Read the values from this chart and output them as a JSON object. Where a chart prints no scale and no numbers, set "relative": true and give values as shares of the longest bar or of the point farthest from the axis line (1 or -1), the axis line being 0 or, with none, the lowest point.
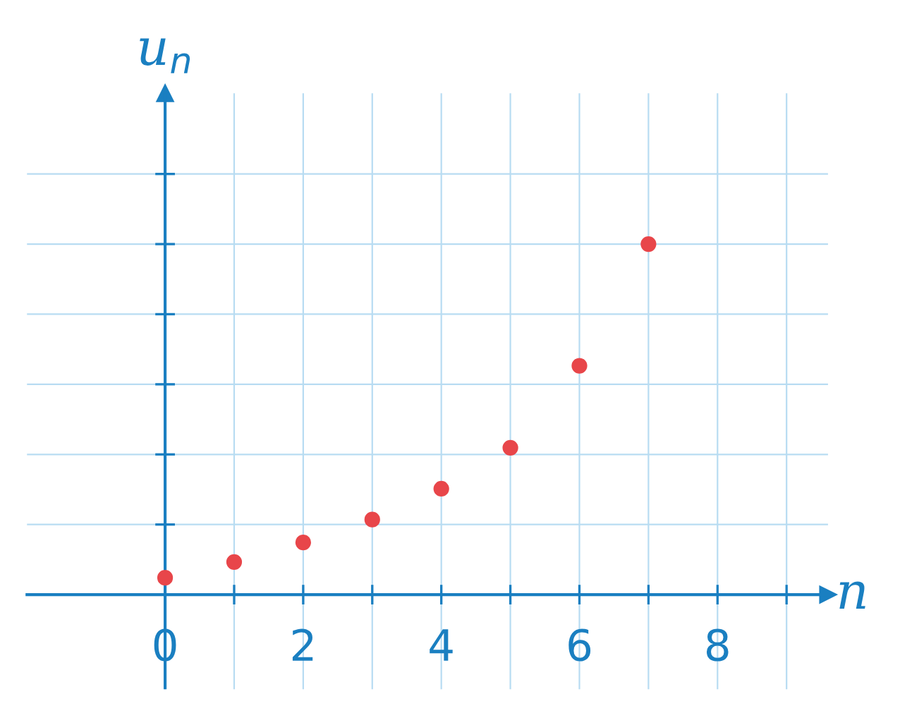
{
  "chart_data": {
    "type": "scatter",
    "relative": true,
    "xlabel": "n",
    "ylabel": "u$_{n}$",
    "x": [
      0,
      1,
      2,
      3,
      4,
      5,
      6,
      7
    ],
    "series": [
      {
        "color": "#e8464a",
        "values": [
          0.048,
          0.093,
          0.149,
          0.214,
          0.302,
          0.419,
          0.653,
          1
        ]
      }
    ],
    "xlim": [
      -2,
      9.6
    ],
    "xticks": [
      0,
      {
        "value": 1,
        "label": null
      },
      2,
      {
        "value": 3,
        "label": null
      },
      4,
      {
        "value": 5,
        "label": null
      },
      6,
      {
        "value": 7,
        "label": null
      },
      8,
      {
        "value": 9,
        "label": null
      }
    ],
    "ref_lines": [
      {
        "axis": "x",
        "value": 0,
        "color": "#1a7fc1"
      }
    ],
    "grid": true,
    "marker": "circle"
  }
}
